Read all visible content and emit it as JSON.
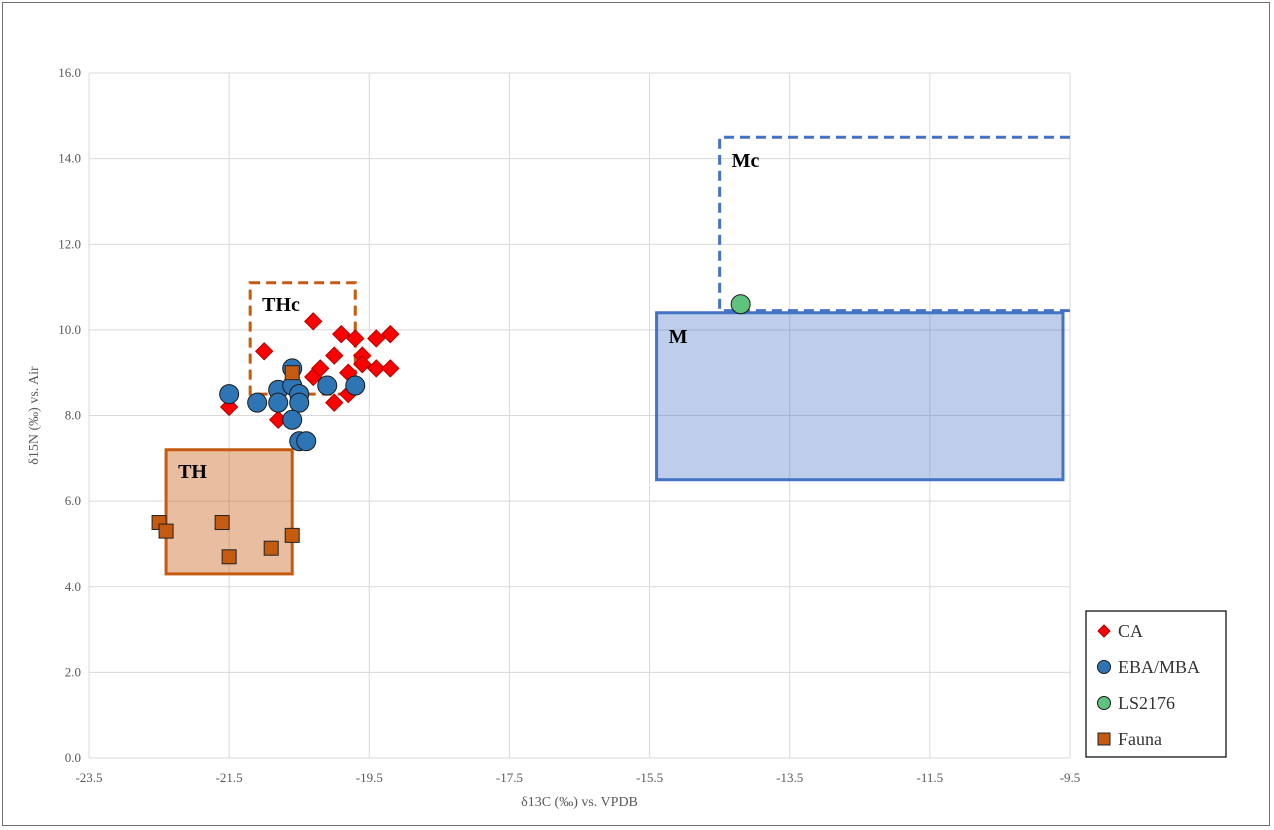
{
  "chart_data": {
    "type": "scatter",
    "title": "",
    "xlabel": "δ13C (‰) vs. VPDB",
    "ylabel": "δ15N (‰) vs. Air",
    "xlim": [
      -23.5,
      -9.5
    ],
    "ylim": [
      0.0,
      16.0
    ],
    "x_ticks": [
      "-23.5",
      "-21.5",
      "-19.5",
      "-17.5",
      "-15.5",
      "-13.5",
      "-11.5",
      "-9.5"
    ],
    "y_ticks": [
      "0.0",
      "2.0",
      "4.0",
      "6.0",
      "8.0",
      "10.0",
      "12.0",
      "14.0",
      "16.0"
    ],
    "grid": true,
    "legend_position": "bottom-right",
    "series": [
      {
        "name": "CA",
        "marker": "diamond",
        "color": "#ff0000",
        "points": [
          [
            -21.5,
            8.2
          ],
          [
            -20.8,
            7.9
          ],
          [
            -21.0,
            9.5
          ],
          [
            -20.3,
            10.2
          ],
          [
            -20.3,
            8.9
          ],
          [
            -20.2,
            9.1
          ],
          [
            -20.0,
            9.4
          ],
          [
            -19.9,
            9.9
          ],
          [
            -19.8,
            9.0
          ],
          [
            -19.7,
            9.8
          ],
          [
            -19.6,
            9.4
          ],
          [
            -19.6,
            9.2
          ],
          [
            -19.4,
            9.8
          ],
          [
            -19.2,
            9.9
          ],
          [
            -19.4,
            9.1
          ],
          [
            -19.2,
            9.1
          ],
          [
            -20.0,
            8.3
          ],
          [
            -19.8,
            8.5
          ]
        ]
      },
      {
        "name": "EBA/MBA",
        "marker": "circle",
        "color": "#2e75b6",
        "points": [
          [
            -21.5,
            8.5
          ],
          [
            -21.1,
            8.3
          ],
          [
            -20.8,
            8.6
          ],
          [
            -20.8,
            8.3
          ],
          [
            -20.6,
            9.1
          ],
          [
            -20.6,
            8.7
          ],
          [
            -20.5,
            8.5
          ],
          [
            -20.5,
            8.3
          ],
          [
            -20.6,
            7.9
          ],
          [
            -20.5,
            7.4
          ],
          [
            -20.4,
            7.4
          ],
          [
            -20.1,
            8.7
          ],
          [
            -19.7,
            8.7
          ]
        ]
      },
      {
        "name": "LS2176",
        "marker": "circle",
        "color": "#5fc27e",
        "points": [
          [
            -14.2,
            10.6
          ]
        ]
      },
      {
        "name": "Fauna",
        "marker": "square",
        "color": "#c55a11",
        "points": [
          [
            -22.5,
            5.5
          ],
          [
            -22.4,
            5.3
          ],
          [
            -21.6,
            5.5
          ],
          [
            -21.5,
            4.7
          ],
          [
            -20.9,
            4.9
          ],
          [
            -20.6,
            5.2
          ],
          [
            -20.6,
            9.0
          ]
        ]
      }
    ],
    "regions": [
      {
        "label": "TH",
        "style": "solid-filled",
        "color": "#c55a11",
        "x": [
          -22.4,
          -20.6
        ],
        "y": [
          4.3,
          7.2
        ]
      },
      {
        "label": "THc",
        "style": "dashed",
        "color": "#c55a11",
        "x": [
          -21.2,
          -19.7
        ],
        "y": [
          8.5,
          11.1
        ]
      },
      {
        "label": "M",
        "style": "solid-filled",
        "color": "#4472c4",
        "x": [
          -15.4,
          -9.6
        ],
        "y": [
          6.5,
          10.4
        ]
      },
      {
        "label": "Mc",
        "style": "dashed-open",
        "color": "#4472c4",
        "x": [
          -14.5,
          -9.5
        ],
        "y": [
          10.45,
          14.5
        ]
      }
    ]
  }
}
